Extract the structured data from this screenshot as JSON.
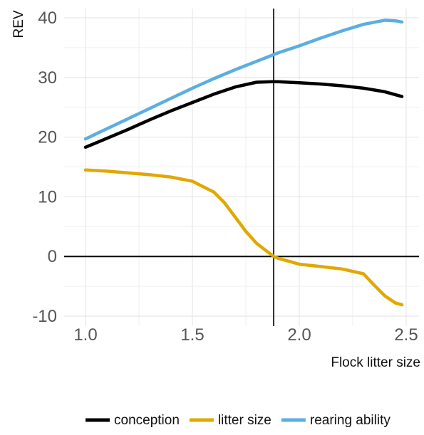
{
  "chart_data": {
    "type": "line",
    "xlabel": "Flock litter size",
    "ylabel": "REV",
    "xlim": [
      1.0,
      2.5
    ],
    "ylim": [
      -10,
      40
    ],
    "xticks": [
      "1.0",
      "1.5",
      "2.0",
      "2.5"
    ],
    "yticks": [
      "-10",
      "0",
      "10",
      "20",
      "30",
      "40"
    ],
    "xtick_values": [
      1.0,
      1.5,
      2.0,
      2.5
    ],
    "ytick_values": [
      -10,
      0,
      10,
      20,
      30,
      40
    ],
    "grid": true,
    "reference_line_x": 1.88,
    "reference_line_y": 0,
    "legend_position": "bottom",
    "series": [
      {
        "name": "conception",
        "color": "#000000",
        "x": [
          1.0,
          1.1,
          1.2,
          1.3,
          1.4,
          1.5,
          1.6,
          1.7,
          1.8,
          1.88,
          1.9,
          2.0,
          2.1,
          2.2,
          2.3,
          2.4,
          2.48
        ],
        "y": [
          18.3,
          19.8,
          21.3,
          22.9,
          24.4,
          25.8,
          27.2,
          28.4,
          29.2,
          29.3,
          29.3,
          29.1,
          28.9,
          28.6,
          28.2,
          27.6,
          26.8
        ]
      },
      {
        "name": "litter size",
        "color": "#E0A800",
        "x": [
          1.0,
          1.1,
          1.2,
          1.3,
          1.4,
          1.5,
          1.6,
          1.65,
          1.7,
          1.75,
          1.8,
          1.88,
          1.9,
          2.0,
          2.1,
          2.2,
          2.3,
          2.35,
          2.4,
          2.45,
          2.48
        ],
        "y": [
          14.5,
          14.3,
          14.0,
          13.7,
          13.3,
          12.6,
          10.8,
          9.0,
          6.6,
          4.2,
          2.2,
          0.0,
          -0.3,
          -1.3,
          -1.7,
          -2.1,
          -2.9,
          -4.8,
          -6.6,
          -7.8,
          -8.1
        ]
      },
      {
        "name": "rearing ability",
        "color": "#5BAEE0",
        "x": [
          1.0,
          1.1,
          1.2,
          1.3,
          1.4,
          1.5,
          1.6,
          1.7,
          1.8,
          1.9,
          2.0,
          2.1,
          2.2,
          2.3,
          2.4,
          2.45,
          2.48
        ],
        "y": [
          19.7,
          21.4,
          23.1,
          24.8,
          26.5,
          28.2,
          29.8,
          31.3,
          32.7,
          34.1,
          35.3,
          36.6,
          37.8,
          38.9,
          39.6,
          39.5,
          39.3
        ]
      }
    ]
  }
}
